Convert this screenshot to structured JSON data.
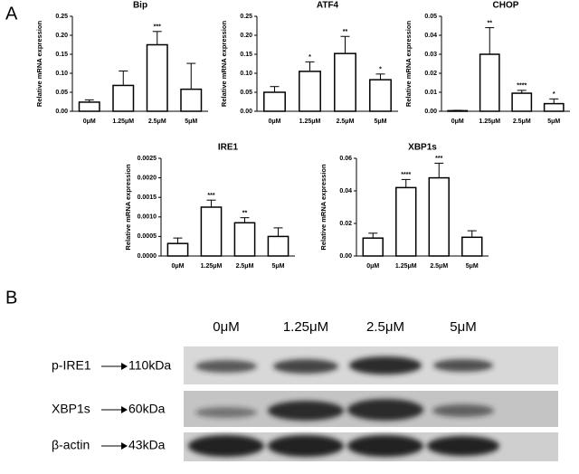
{
  "panels": [
    "A",
    "B"
  ],
  "chart_data": [
    {
      "type": "bar",
      "title": "Bip",
      "ylabel": "Relative mRNA expression",
      "categories": [
        "0μM",
        "1.25μM",
        "2.5μM",
        "5μM"
      ],
      "values": [
        0.024,
        0.068,
        0.175,
        0.058
      ],
      "errors": [
        0.006,
        0.038,
        0.035,
        0.068
      ],
      "annotations": [
        null,
        null,
        "***",
        null
      ],
      "color": "#ffffff",
      "ylim": [
        0,
        0.25
      ],
      "yticks": [
        {
          "value": 0,
          "label": "0.00"
        },
        {
          "value": 0.05,
          "label": "0.05"
        },
        {
          "value": 0.1,
          "label": "0.10"
        },
        {
          "value": 0.15,
          "label": "0.15"
        },
        {
          "value": 0.2,
          "label": "0.20"
        },
        {
          "value": 0.25,
          "label": "0.25"
        }
      ]
    },
    {
      "type": "bar",
      "title": "ATF4",
      "ylabel": "Relative mRNA expression",
      "categories": [
        "0μM",
        "1.25μM",
        "2.5μM",
        "5μM"
      ],
      "values": [
        0.05,
        0.105,
        0.152,
        0.083
      ],
      "errors": [
        0.015,
        0.025,
        0.045,
        0.015
      ],
      "annotations": [
        null,
        "*",
        "**",
        "*"
      ],
      "color": "#ffffff",
      "ylim": [
        0,
        0.25
      ],
      "yticks": [
        {
          "value": 0,
          "label": "0.00"
        },
        {
          "value": 0.05,
          "label": "0.05"
        },
        {
          "value": 0.1,
          "label": "0.10"
        },
        {
          "value": 0.15,
          "label": "0.15"
        },
        {
          "value": 0.2,
          "label": "0.20"
        },
        {
          "value": 0.25,
          "label": "0.25"
        }
      ]
    },
    {
      "type": "bar",
      "title": "CHOP",
      "ylabel": "Relative mRNA expression",
      "categories": [
        "0μM",
        "1.25μM",
        "2.5μM",
        "5μM"
      ],
      "values": [
        0.0003,
        0.03,
        0.0095,
        0.004
      ],
      "errors": [
        0.0002,
        0.014,
        0.0015,
        0.0025
      ],
      "annotations": [
        null,
        "**",
        "****",
        "*"
      ],
      "color": "#ffffff",
      "ylim": [
        0,
        0.05
      ],
      "yticks": [
        {
          "value": 0,
          "label": "0.00"
        },
        {
          "value": 0.01,
          "label": "0.01"
        },
        {
          "value": 0.02,
          "label": "0.02"
        },
        {
          "value": 0.03,
          "label": "0.03"
        },
        {
          "value": 0.04,
          "label": "0.04"
        },
        {
          "value": 0.05,
          "label": "0.05"
        }
      ]
    },
    {
      "type": "bar",
      "title": "IRE1",
      "ylabel": "Relative mRNA expression",
      "categories": [
        "0μM",
        "1.25μM",
        "2.5μM",
        "5μM"
      ],
      "values": [
        0.00032,
        0.00125,
        0.00085,
        0.0005
      ],
      "errors": [
        0.00014,
        0.00018,
        0.00013,
        0.00022
      ],
      "annotations": [
        null,
        "***",
        "**",
        null
      ],
      "color": "#ffffff",
      "ylim": [
        0,
        0.0025
      ],
      "yticks": [
        {
          "value": 0,
          "label": "0.0000"
        },
        {
          "value": 0.0005,
          "label": "0.0005"
        },
        {
          "value": 0.001,
          "label": "0.0010"
        },
        {
          "value": 0.0015,
          "label": "0.0015"
        },
        {
          "value": 0.002,
          "label": "0.0020"
        },
        {
          "value": 0.0025,
          "label": "0.0025"
        }
      ]
    },
    {
      "type": "bar",
      "title": "XBP1s",
      "ylabel": "Relative mRNA expression",
      "categories": [
        "0μM",
        "1.25μM",
        "2.5μM",
        "5μM"
      ],
      "values": [
        0.011,
        0.042,
        0.048,
        0.0115
      ],
      "errors": [
        0.003,
        0.005,
        0.009,
        0.004
      ],
      "annotations": [
        null,
        "****",
        "***",
        null
      ],
      "color": "#ffffff",
      "ylim": [
        0,
        0.06
      ],
      "yticks": [
        {
          "value": 0,
          "label": "0.00"
        },
        {
          "value": 0.02,
          "label": "0.02"
        },
        {
          "value": 0.04,
          "label": "0.04"
        },
        {
          "value": 0.06,
          "label": "0.06"
        }
      ]
    }
  ],
  "blot": {
    "lanes": [
      "0μM",
      "1.25μM",
      "2.5μM",
      "5μM"
    ],
    "rows": [
      {
        "protein": "p-IRE1",
        "size": "110kDa"
      },
      {
        "protein": "XBP1s",
        "size": "60kDa"
      },
      {
        "protein": "β-actin",
        "size": "43kDa"
      }
    ]
  }
}
